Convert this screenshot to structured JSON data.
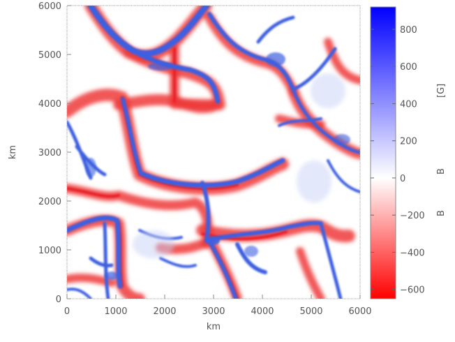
{
  "chart_data": {
    "type": "heatmap",
    "title": "",
    "xlabel": "km",
    "ylabel": "km",
    "xlim": [
      0,
      6000
    ],
    "ylim": [
      0,
      6000
    ],
    "x_ticks": [
      "0",
      "1000",
      "2000",
      "3000",
      "4000",
      "5000",
      "6000"
    ],
    "y_ticks": [
      "0",
      "1000",
      "2000",
      "3000",
      "4000",
      "5000",
      "6000"
    ],
    "colorbar": {
      "label_prefix": "B",
      "unit": "[G]",
      "range": [
        -650,
        920
      ],
      "ticks": [
        "800",
        "600",
        "400",
        "200",
        "0",
        "−200",
        "−400",
        "−600"
      ],
      "colors": {
        "min": "#ff0000",
        "zero": "#ffffff",
        "max": "#0000ff"
      }
    },
    "field_colors": {
      "positive": "#3d5fe0",
      "negative": "#e8202a",
      "background": "#ffffff"
    }
  }
}
